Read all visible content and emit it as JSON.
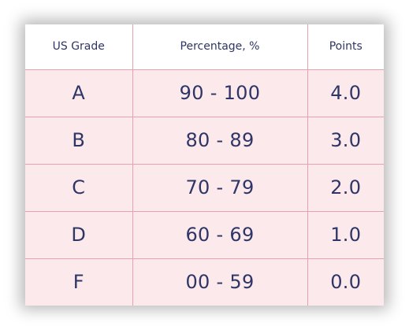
{
  "table": {
    "headers": [
      "US Grade",
      "Percentage, %",
      "Points"
    ],
    "rows": [
      [
        "A",
        "90 - 100",
        "4.0"
      ],
      [
        "B",
        "80 - 89",
        "3.0"
      ],
      [
        "C",
        "70 - 79",
        "2.0"
      ],
      [
        "D",
        "60 - 69",
        "1.0"
      ],
      [
        "F",
        "00 - 59",
        "0.0"
      ]
    ]
  },
  "colors": {
    "text": "#2f3565",
    "row_background": "#fbe9eb",
    "header_background": "#ffffff",
    "border": "#e9a2ad"
  }
}
